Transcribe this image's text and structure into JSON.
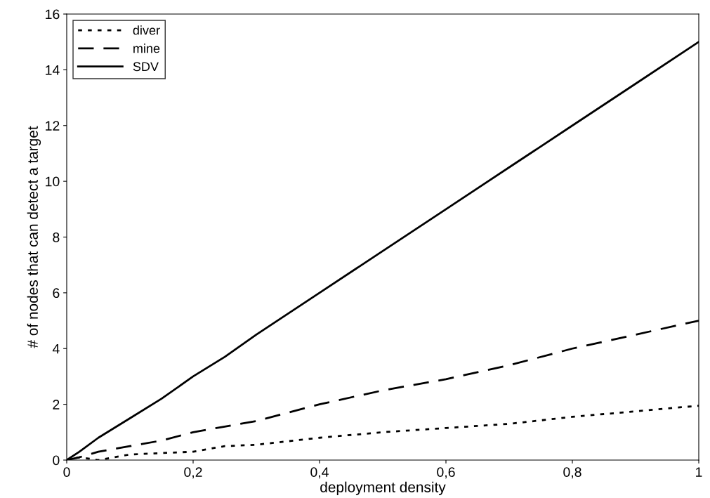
{
  "chart_data": {
    "type": "line",
    "xlabel": "deployment density",
    "ylabel": "# of nodes that can detect a target",
    "xlim": [
      0,
      1
    ],
    "xticks": [
      0,
      {
        "value": 0.2,
        "label": "0,2"
      },
      {
        "value": 0.4,
        "label": "0,4"
      },
      {
        "value": 0.6,
        "label": "0,6"
      },
      {
        "value": 0.8,
        "label": "0,8"
      },
      1
    ],
    "ylim": [
      0,
      16
    ],
    "yticks": [
      0,
      2,
      4,
      6,
      8,
      10,
      12,
      14,
      16
    ],
    "grid": false,
    "legend": "top left",
    "marker": "none",
    "x": [
      0,
      0.02,
      0.05,
      0.1,
      0.15,
      0.2,
      0.25,
      0.3,
      0.4,
      0.5,
      0.6,
      0.7,
      0.8,
      0.9,
      1
    ],
    "series": [
      {
        "name": "diver",
        "color": "#000000",
        "line_style": "dotted",
        "values": [
          0,
          0.1,
          0,
          0.2,
          0.25,
          0.3,
          0.5,
          0.55,
          0.8,
          1.0,
          1.15,
          1.3,
          1.55,
          1.75,
          1.95
        ]
      },
      {
        "name": "mine",
        "color": "#000000",
        "line_style": "dashed",
        "values": [
          0,
          0.1,
          0.3,
          0.5,
          0.7,
          1.0,
          1.2,
          1.4,
          2.0,
          2.5,
          2.9,
          3.4,
          4.0,
          4.5,
          5.0
        ]
      },
      {
        "name": "SDV",
        "color": "#000000",
        "line_style": "solid",
        "values": [
          0,
          0.3,
          0.8,
          1.5,
          2.2,
          3.0,
          3.7,
          4.5,
          6.0,
          7.5,
          9.0,
          10.5,
          12.0,
          13.5,
          15.0
        ]
      }
    ]
  }
}
